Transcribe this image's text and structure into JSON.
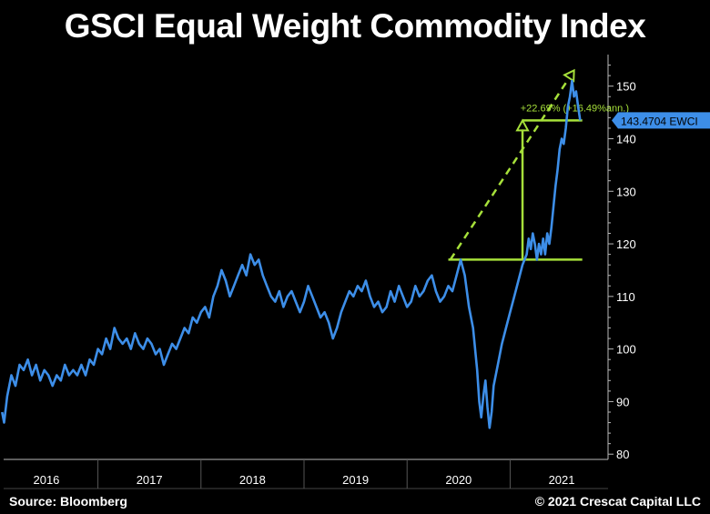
{
  "header": {
    "title": "GSCI Equal Weight Commodity Index"
  },
  "footer": {
    "source": "Source: Bloomberg",
    "copyright": "© 2021 Crescat Capital LLC"
  },
  "chart_data": {
    "type": "line",
    "title": "GSCI Equal Weight Commodity Index",
    "xlabel": "",
    "ylabel": "",
    "ylim": [
      79,
      156
    ],
    "xlim": [
      2015.55,
      2021.45
    ],
    "yticks": [
      80,
      90,
      100,
      110,
      120,
      130,
      140,
      150
    ],
    "xtick_labels": [
      {
        "label": "2016",
        "x": 2016.0
      },
      {
        "label": "2017",
        "x": 2017.0
      },
      {
        "label": "2018",
        "x": 2018.0
      },
      {
        "label": "2019",
        "x": 2019.0
      },
      {
        "label": "2020",
        "x": 2020.0
      },
      {
        "label": "2021",
        "x": 2021.0
      }
    ],
    "year_dividers": [
      2016.5,
      2017.5,
      2018.5,
      2019.5,
      2020.5
    ],
    "series": [
      {
        "name": "EWCI",
        "color": "#3d8ee8",
        "points": [
          [
            2015.57,
            88
          ],
          [
            2015.59,
            86
          ],
          [
            2015.62,
            91
          ],
          [
            2015.66,
            95
          ],
          [
            2015.7,
            93
          ],
          [
            2015.74,
            97
          ],
          [
            2015.78,
            96
          ],
          [
            2015.82,
            98
          ],
          [
            2015.86,
            95
          ],
          [
            2015.9,
            97
          ],
          [
            2015.94,
            94
          ],
          [
            2015.98,
            96
          ],
          [
            2016.02,
            95
          ],
          [
            2016.06,
            93
          ],
          [
            2016.1,
            95
          ],
          [
            2016.14,
            94
          ],
          [
            2016.18,
            97
          ],
          [
            2016.22,
            95
          ],
          [
            2016.26,
            96
          ],
          [
            2016.3,
            95
          ],
          [
            2016.34,
            97
          ],
          [
            2016.38,
            95
          ],
          [
            2016.42,
            98
          ],
          [
            2016.46,
            97
          ],
          [
            2016.5,
            100
          ],
          [
            2016.54,
            99
          ],
          [
            2016.58,
            102
          ],
          [
            2016.62,
            100
          ],
          [
            2016.66,
            104
          ],
          [
            2016.7,
            102
          ],
          [
            2016.74,
            101
          ],
          [
            2016.78,
            102
          ],
          [
            2016.82,
            100
          ],
          [
            2016.86,
            103
          ],
          [
            2016.9,
            101
          ],
          [
            2016.94,
            100
          ],
          [
            2016.98,
            102
          ],
          [
            2017.02,
            101
          ],
          [
            2017.06,
            99
          ],
          [
            2017.1,
            100
          ],
          [
            2017.14,
            97
          ],
          [
            2017.18,
            99
          ],
          [
            2017.22,
            101
          ],
          [
            2017.26,
            100
          ],
          [
            2017.3,
            102
          ],
          [
            2017.34,
            104
          ],
          [
            2017.38,
            103
          ],
          [
            2017.42,
            106
          ],
          [
            2017.46,
            105
          ],
          [
            2017.5,
            107
          ],
          [
            2017.54,
            108
          ],
          [
            2017.58,
            106
          ],
          [
            2017.62,
            110
          ],
          [
            2017.66,
            112
          ],
          [
            2017.7,
            115
          ],
          [
            2017.74,
            113
          ],
          [
            2017.78,
            110
          ],
          [
            2017.82,
            112
          ],
          [
            2017.86,
            114
          ],
          [
            2017.9,
            116
          ],
          [
            2017.94,
            114
          ],
          [
            2017.98,
            118
          ],
          [
            2018.02,
            116
          ],
          [
            2018.06,
            117
          ],
          [
            2018.1,
            114
          ],
          [
            2018.14,
            112
          ],
          [
            2018.18,
            110
          ],
          [
            2018.22,
            109
          ],
          [
            2018.26,
            111
          ],
          [
            2018.3,
            108
          ],
          [
            2018.34,
            110
          ],
          [
            2018.38,
            111
          ],
          [
            2018.42,
            109
          ],
          [
            2018.46,
            107
          ],
          [
            2018.5,
            109
          ],
          [
            2018.54,
            112
          ],
          [
            2018.58,
            110
          ],
          [
            2018.62,
            108
          ],
          [
            2018.66,
            106
          ],
          [
            2018.7,
            107
          ],
          [
            2018.74,
            105
          ],
          [
            2018.78,
            102
          ],
          [
            2018.82,
            104
          ],
          [
            2018.86,
            107
          ],
          [
            2018.9,
            109
          ],
          [
            2018.94,
            111
          ],
          [
            2018.98,
            110
          ],
          [
            2019.02,
            112
          ],
          [
            2019.06,
            111
          ],
          [
            2019.1,
            113
          ],
          [
            2019.14,
            110
          ],
          [
            2019.18,
            108
          ],
          [
            2019.22,
            109
          ],
          [
            2019.26,
            107
          ],
          [
            2019.3,
            108
          ],
          [
            2019.34,
            111
          ],
          [
            2019.38,
            109
          ],
          [
            2019.42,
            112
          ],
          [
            2019.46,
            110
          ],
          [
            2019.5,
            108
          ],
          [
            2019.54,
            109
          ],
          [
            2019.58,
            112
          ],
          [
            2019.62,
            110
          ],
          [
            2019.66,
            111
          ],
          [
            2019.7,
            113
          ],
          [
            2019.74,
            114
          ],
          [
            2019.78,
            111
          ],
          [
            2019.82,
            109
          ],
          [
            2019.86,
            110
          ],
          [
            2019.9,
            112
          ],
          [
            2019.94,
            111
          ],
          [
            2019.98,
            114
          ],
          [
            2020.02,
            117
          ],
          [
            2020.06,
            114
          ],
          [
            2020.1,
            108
          ],
          [
            2020.14,
            104
          ],
          [
            2020.18,
            96
          ],
          [
            2020.2,
            90
          ],
          [
            2020.22,
            87
          ],
          [
            2020.24,
            91
          ],
          [
            2020.26,
            94
          ],
          [
            2020.28,
            89
          ],
          [
            2020.3,
            85
          ],
          [
            2020.32,
            88
          ],
          [
            2020.34,
            93
          ],
          [
            2020.38,
            97
          ],
          [
            2020.42,
            101
          ],
          [
            2020.46,
            104
          ],
          [
            2020.5,
            107
          ],
          [
            2020.54,
            110
          ],
          [
            2020.58,
            113
          ],
          [
            2020.62,
            116
          ],
          [
            2020.66,
            118
          ],
          [
            2020.68,
            121
          ],
          [
            2020.7,
            119
          ],
          [
            2020.72,
            122
          ],
          [
            2020.74,
            120
          ],
          [
            2020.76,
            117
          ],
          [
            2020.78,
            120
          ],
          [
            2020.8,
            118
          ],
          [
            2020.82,
            121
          ],
          [
            2020.84,
            118
          ],
          [
            2020.86,
            122
          ],
          [
            2020.88,
            120
          ],
          [
            2020.9,
            123
          ],
          [
            2020.92,
            127
          ],
          [
            2020.94,
            131
          ],
          [
            2020.96,
            134
          ],
          [
            2020.98,
            138
          ],
          [
            2021.0,
            140
          ],
          [
            2021.02,
            139
          ],
          [
            2021.04,
            142
          ],
          [
            2021.06,
            146
          ],
          [
            2021.08,
            148
          ],
          [
            2021.1,
            151
          ],
          [
            2021.12,
            148
          ],
          [
            2021.14,
            149
          ],
          [
            2021.16,
            146
          ],
          [
            2021.18,
            143.47
          ]
        ]
      }
    ],
    "last_value_label": "143.4704 EWCI",
    "annotations": [
      {
        "kind": "hline",
        "y": 117,
        "x_from": 2019.9,
        "x_to": 2021.2,
        "color": "#a6e03a"
      },
      {
        "kind": "hline",
        "y": 143.47,
        "x_from": 2020.62,
        "x_to": 2021.2,
        "color": "#a6e03a"
      },
      {
        "kind": "vertical_arrow",
        "x": 2020.62,
        "y_from": 117,
        "y_to": 143.47,
        "color": "#a6e03a"
      },
      {
        "kind": "dashed_arrow",
        "x_from": 2019.92,
        "y_from": 117,
        "x_to": 2021.12,
        "y_to": 153,
        "color": "#a6e03a"
      },
      {
        "kind": "text",
        "text": "+22.69% (+16.49%ann.)",
        "x": 2020.6,
        "y": 145.2,
        "color": "#a6e03a"
      }
    ]
  }
}
